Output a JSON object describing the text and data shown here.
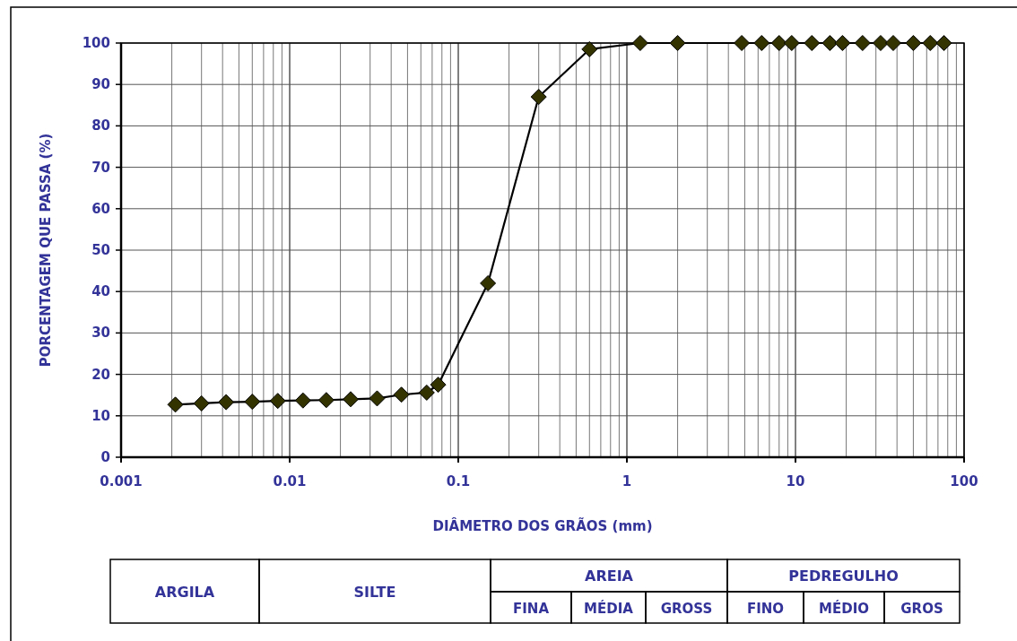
{
  "chart_data": {
    "type": "line",
    "xlabel": "DIÂMETRO DOS GRÃOS (mm)",
    "ylabel": "PORCENTAGEM QUE PASSA (%)",
    "log": "x",
    "grid": true,
    "marker": "diamond",
    "line_style": "solid",
    "xlim": [
      0.001,
      100
    ],
    "ylim": [
      0,
      100
    ],
    "xticks": [
      {
        "value": 0.001,
        "label": "0.001"
      },
      {
        "value": 0.002,
        "label": null
      },
      {
        "value": 0.003,
        "label": null
      },
      {
        "value": 0.004,
        "label": null
      },
      {
        "value": 0.005,
        "label": null
      },
      {
        "value": 0.006,
        "label": null
      },
      {
        "value": 0.007,
        "label": null
      },
      {
        "value": 0.008,
        "label": null
      },
      {
        "value": 0.009,
        "label": null
      },
      {
        "value": 0.01,
        "label": "0.01"
      },
      {
        "value": 0.02,
        "label": null
      },
      {
        "value": 0.03,
        "label": null
      },
      {
        "value": 0.04,
        "label": null
      },
      {
        "value": 0.05,
        "label": null
      },
      {
        "value": 0.06,
        "label": null
      },
      {
        "value": 0.07,
        "label": null
      },
      {
        "value": 0.08,
        "label": null
      },
      {
        "value": 0.09,
        "label": null
      },
      {
        "value": 0.1,
        "label": "0.1"
      },
      {
        "value": 0.2,
        "label": null
      },
      {
        "value": 0.3,
        "label": null
      },
      {
        "value": 0.4,
        "label": null
      },
      {
        "value": 0.5,
        "label": null
      },
      {
        "value": 0.6,
        "label": null
      },
      {
        "value": 0.7,
        "label": null
      },
      {
        "value": 0.8,
        "label": null
      },
      {
        "value": 0.9,
        "label": null
      },
      1,
      {
        "value": 2,
        "label": null
      },
      {
        "value": 3,
        "label": null
      },
      {
        "value": 4,
        "label": null
      },
      {
        "value": 5,
        "label": null
      },
      {
        "value": 6,
        "label": null
      },
      {
        "value": 7,
        "label": null
      },
      {
        "value": 8,
        "label": null
      },
      {
        "value": 9,
        "label": null
      },
      10,
      {
        "value": 20,
        "label": null
      },
      {
        "value": 30,
        "label": null
      },
      {
        "value": 40,
        "label": null
      },
      {
        "value": 50,
        "label": null
      },
      {
        "value": 60,
        "label": null
      },
      {
        "value": 70,
        "label": null
      },
      {
        "value": 80,
        "label": null
      },
      {
        "value": 90,
        "label": null
      },
      100
    ],
    "yticks": [
      0,
      10,
      20,
      30,
      40,
      50,
      60,
      70,
      80,
      90,
      100
    ],
    "series": [
      {
        "color": "#333300",
        "x": [
          0.0021,
          0.003,
          0.0042,
          0.006,
          0.0085,
          0.012,
          0.0165,
          0.023,
          0.033,
          0.046,
          0.065,
          0.076,
          0.15,
          0.3,
          0.6,
          1.2,
          2,
          4.8,
          6.3,
          8,
          9.5,
          12.5,
          16,
          19,
          25,
          32,
          38,
          50,
          63,
          76
        ],
        "values": [
          12.7,
          13,
          13.3,
          13.4,
          13.6,
          13.7,
          13.8,
          14,
          14.2,
          15.1,
          15.6,
          17.5,
          42,
          87,
          98.5,
          100,
          100,
          100,
          100,
          100,
          100,
          100,
          100,
          100,
          100,
          100,
          100,
          100,
          100,
          100
        ]
      }
    ],
    "annotations": [
      "ARGILA",
      "SILTE",
      "AREIA",
      "PEDREGULHO",
      "FINA",
      "MÉDIA",
      "GROSS",
      "FINO",
      "MÉDIO",
      "GROS"
    ]
  }
}
